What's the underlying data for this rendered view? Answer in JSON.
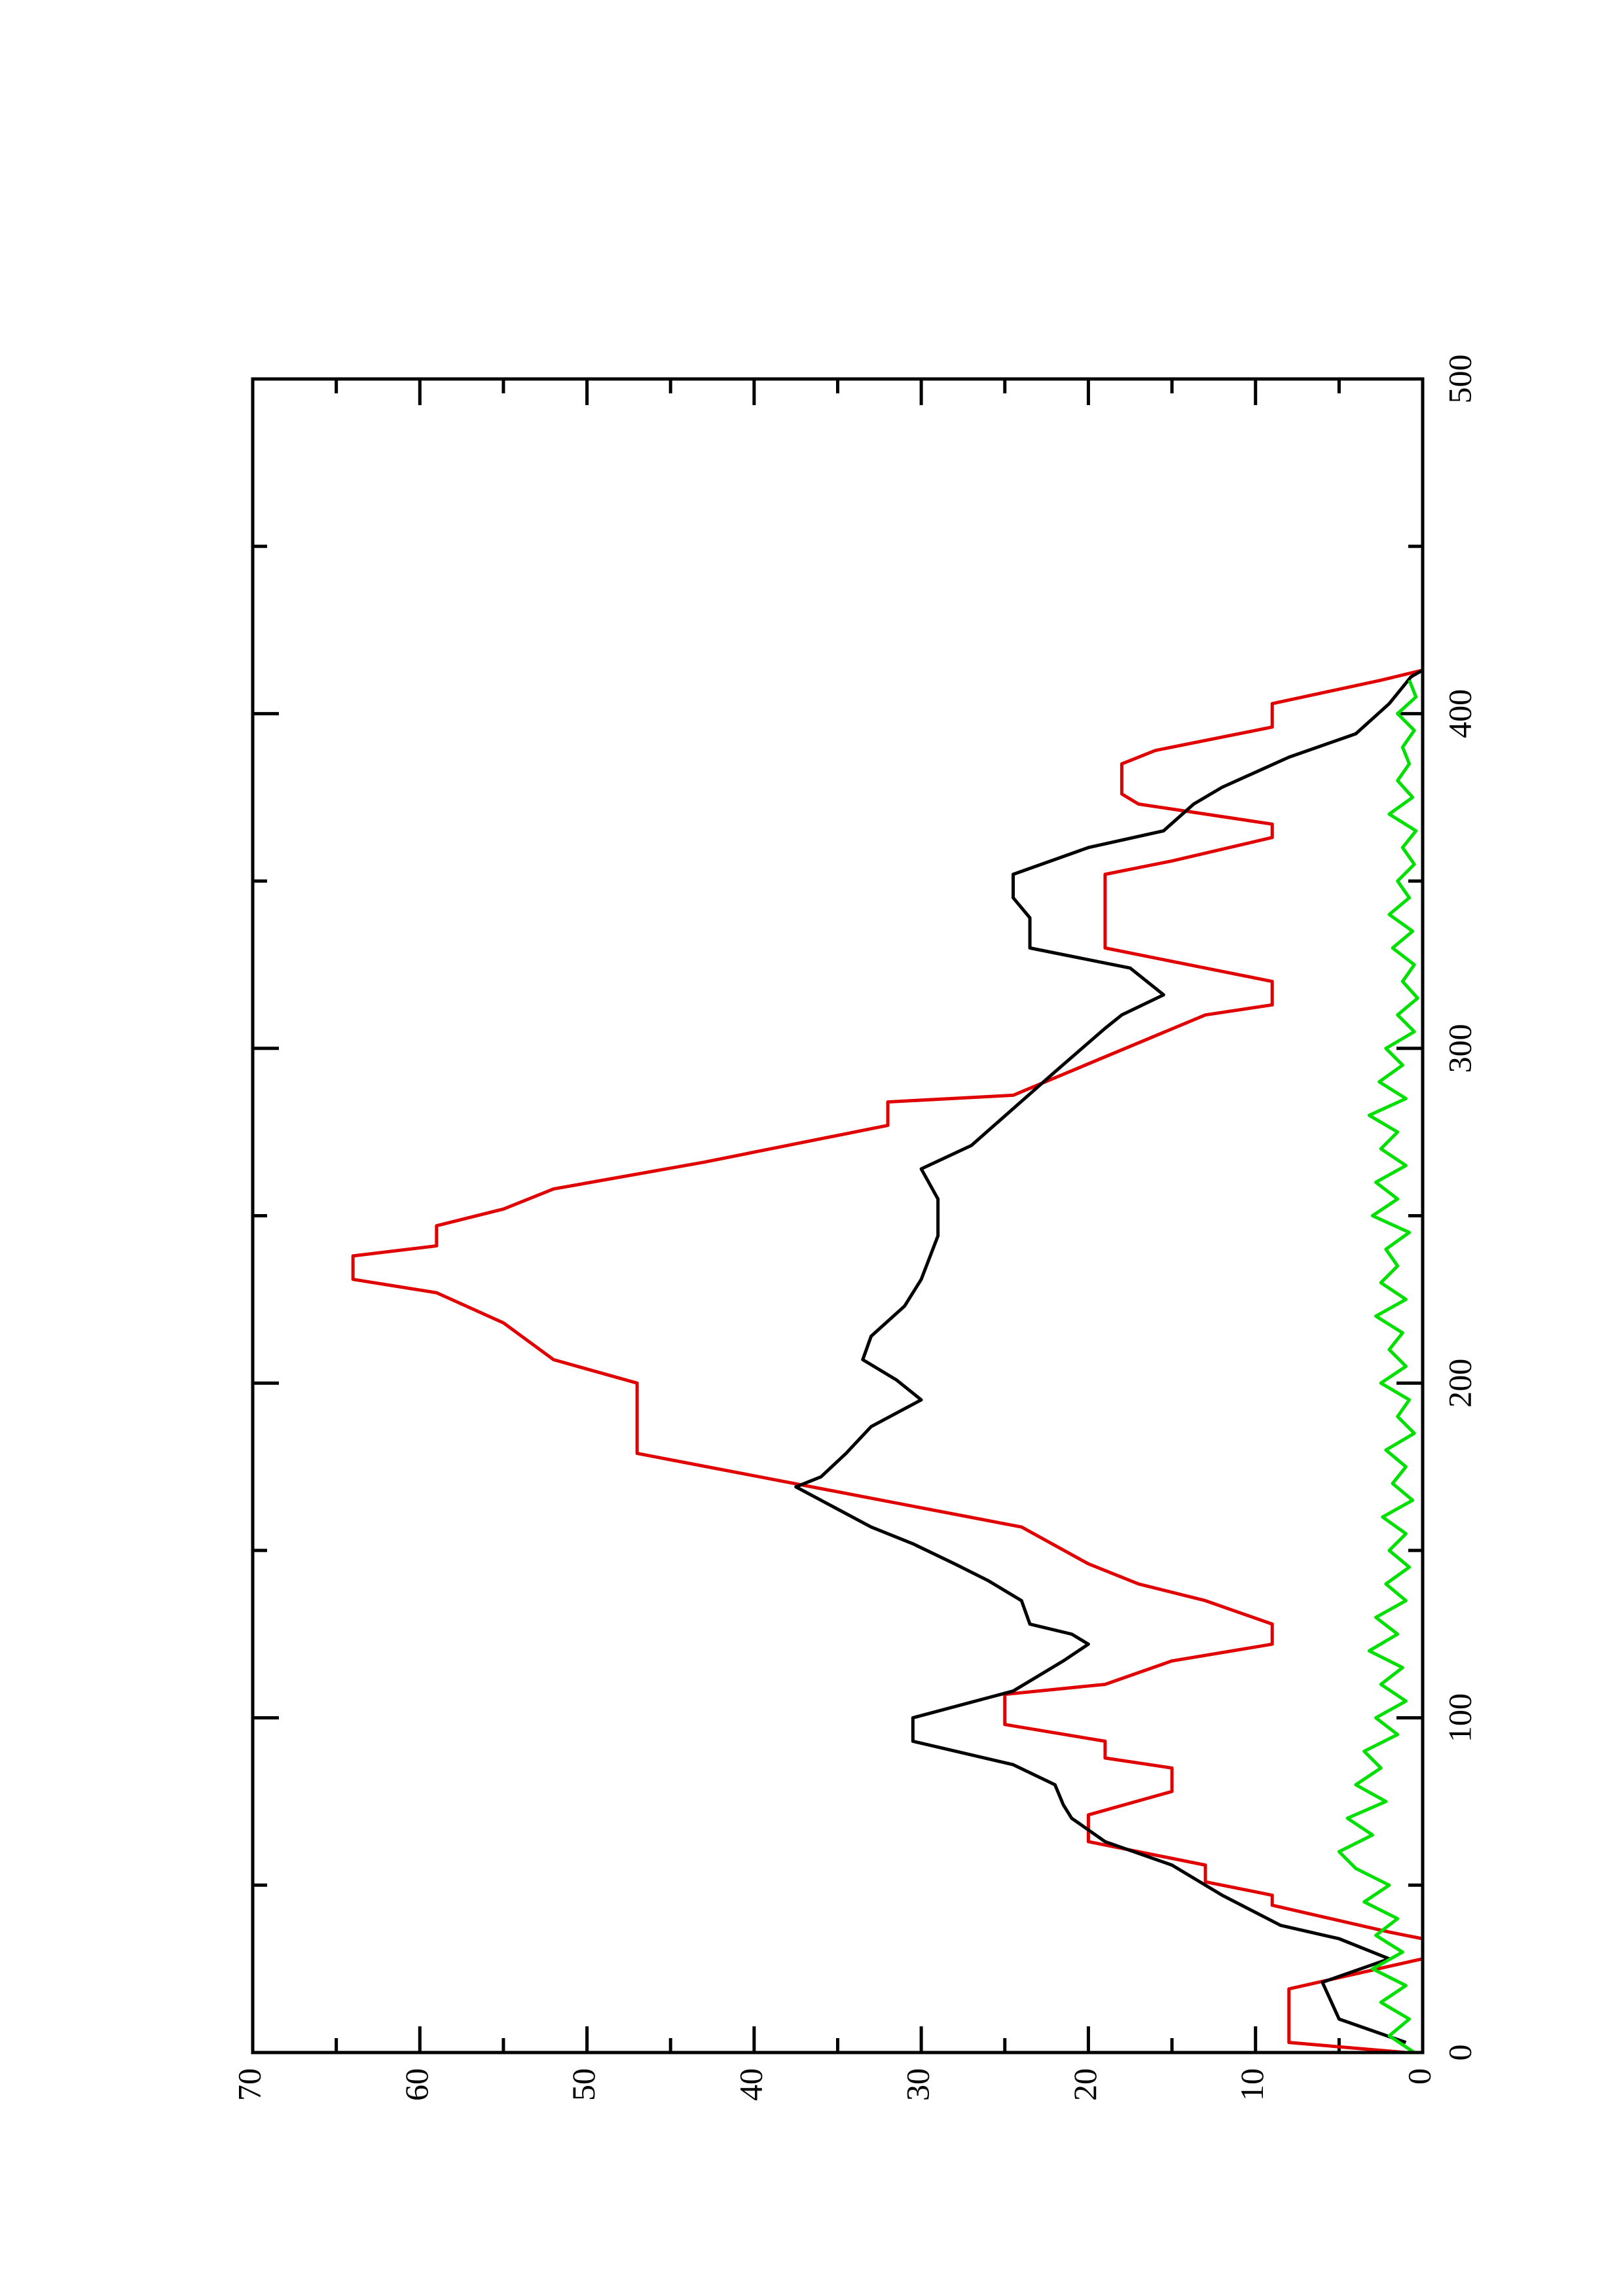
{
  "chart_data": {
    "type": "line",
    "xlim": [
      0,
      500
    ],
    "xticks": [
      0,
      100,
      200,
      300,
      400,
      500
    ],
    "xminorticks": [
      50,
      150,
      250,
      350,
      450
    ],
    "ylim": [
      0,
      70
    ],
    "yticks": [
      0,
      10,
      20,
      30,
      40,
      50,
      60,
      70
    ],
    "yminorticks": [
      5,
      15,
      25,
      35,
      45,
      55,
      65
    ],
    "series": [
      {
        "color": "#e00000",
        "x": [
          0,
          3,
          19,
          28,
          34,
          36,
          44,
          47,
          51,
          56,
          63,
          71,
          78,
          85,
          88,
          93,
          98,
          107,
          110,
          117,
          122,
          128,
          135,
          140,
          146,
          157,
          179,
          200,
          207,
          218,
          227,
          231,
          238,
          241,
          247,
          252,
          258,
          266,
          271,
          277,
          284,
          286,
          310,
          313,
          320,
          324,
          330,
          352,
          356,
          363,
          367,
          373,
          376,
          385,
          389,
          396,
          403,
          410,
          413
        ],
        "values": [
          1,
          8,
          8,
          0,
          0,
          2,
          9,
          9,
          13,
          13,
          20,
          20,
          15,
          15,
          19,
          19,
          25,
          25,
          19,
          15,
          9,
          9,
          13,
          17,
          20,
          24,
          47,
          47,
          52,
          55,
          59,
          64,
          64,
          59,
          59,
          55,
          52,
          43,
          38,
          32,
          32,
          24.5,
          13,
          9,
          9,
          13,
          19,
          19,
          15,
          9,
          9,
          17,
          18,
          18,
          16,
          9,
          9,
          2.5,
          0
        ]
      },
      {
        "color": "#000000",
        "x": [
          3,
          10,
          21,
          28,
          34,
          38,
          47,
          56,
          63,
          70,
          74,
          80,
          86,
          93,
          100,
          108,
          117,
          122,
          125,
          128,
          135,
          141,
          146,
          152,
          157,
          165,
          169,
          172,
          179,
          187,
          195,
          201,
          207,
          214,
          223,
          231,
          244,
          255,
          264,
          271,
          282,
          293,
          306,
          310,
          316,
          324,
          330,
          339,
          345,
          352,
          360,
          365,
          373,
          378,
          387,
          394,
          403,
          411,
          413
        ],
        "values": [
          1,
          5,
          6,
          2,
          5,
          8.5,
          12,
          15,
          19,
          21,
          21.5,
          22,
          24.5,
          30.5,
          30.5,
          24.5,
          21.5,
          20,
          21,
          23.5,
          24,
          26,
          28,
          30.5,
          33,
          36,
          37.5,
          36,
          34.5,
          33,
          30,
          31.5,
          33.5,
          33,
          31,
          30,
          29,
          29,
          30,
          27,
          24.5,
          22,
          19,
          18,
          15.5,
          17.5,
          23.5,
          23.5,
          24.5,
          24.5,
          20,
          15.5,
          13.7,
          12,
          8,
          4,
          2,
          0.7,
          0
        ]
      },
      {
        "color": "#00e000",
        "x": [
          0,
          5,
          10,
          15,
          20,
          25,
          30,
          35,
          40,
          45,
          50,
          55,
          60,
          65,
          70,
          75,
          80,
          85,
          90,
          95,
          100,
          105,
          110,
          115,
          120,
          125,
          130,
          135,
          140,
          145,
          150,
          155,
          160,
          165,
          170,
          175,
          180,
          185,
          190,
          195,
          200,
          205,
          210,
          215,
          220,
          225,
          230,
          235,
          240,
          245,
          250,
          255,
          260,
          265,
          270,
          275,
          280,
          285,
          290,
          295,
          300,
          305,
          310,
          315,
          320,
          325,
          330,
          335,
          340,
          345,
          350,
          355,
          360,
          365,
          370,
          375,
          380,
          385,
          390,
          395,
          400,
          405,
          410
        ],
        "values": [
          0.5,
          2,
          0.8,
          2.5,
          1,
          3,
          1.2,
          2.8,
          1.5,
          3.5,
          2,
          4,
          5,
          3,
          4.5,
          2.2,
          4,
          2.5,
          3.5,
          1.5,
          2.8,
          1,
          2.5,
          1.2,
          3.2,
          1.5,
          2.8,
          1,
          2.2,
          0.8,
          2,
          1,
          2.4,
          0.6,
          1.8,
          1,
          2.2,
          0.5,
          1.5,
          0.8,
          2.5,
          1,
          2,
          1.2,
          2.8,
          1,
          2.5,
          1.5,
          2.2,
          0.8,
          3,
          1.5,
          2.8,
          1,
          2.5,
          1.5,
          3.2,
          1,
          2.6,
          1.2,
          2.2,
          0.5,
          1.5,
          0.3,
          1.2,
          0.5,
          1.8,
          0.6,
          2,
          0.8,
          1.5,
          0.5,
          1.2,
          0.4,
          2,
          0.6,
          1.5,
          0.8,
          1.2,
          0.5,
          1.5,
          0.4,
          0.8
        ]
      }
    ]
  }
}
